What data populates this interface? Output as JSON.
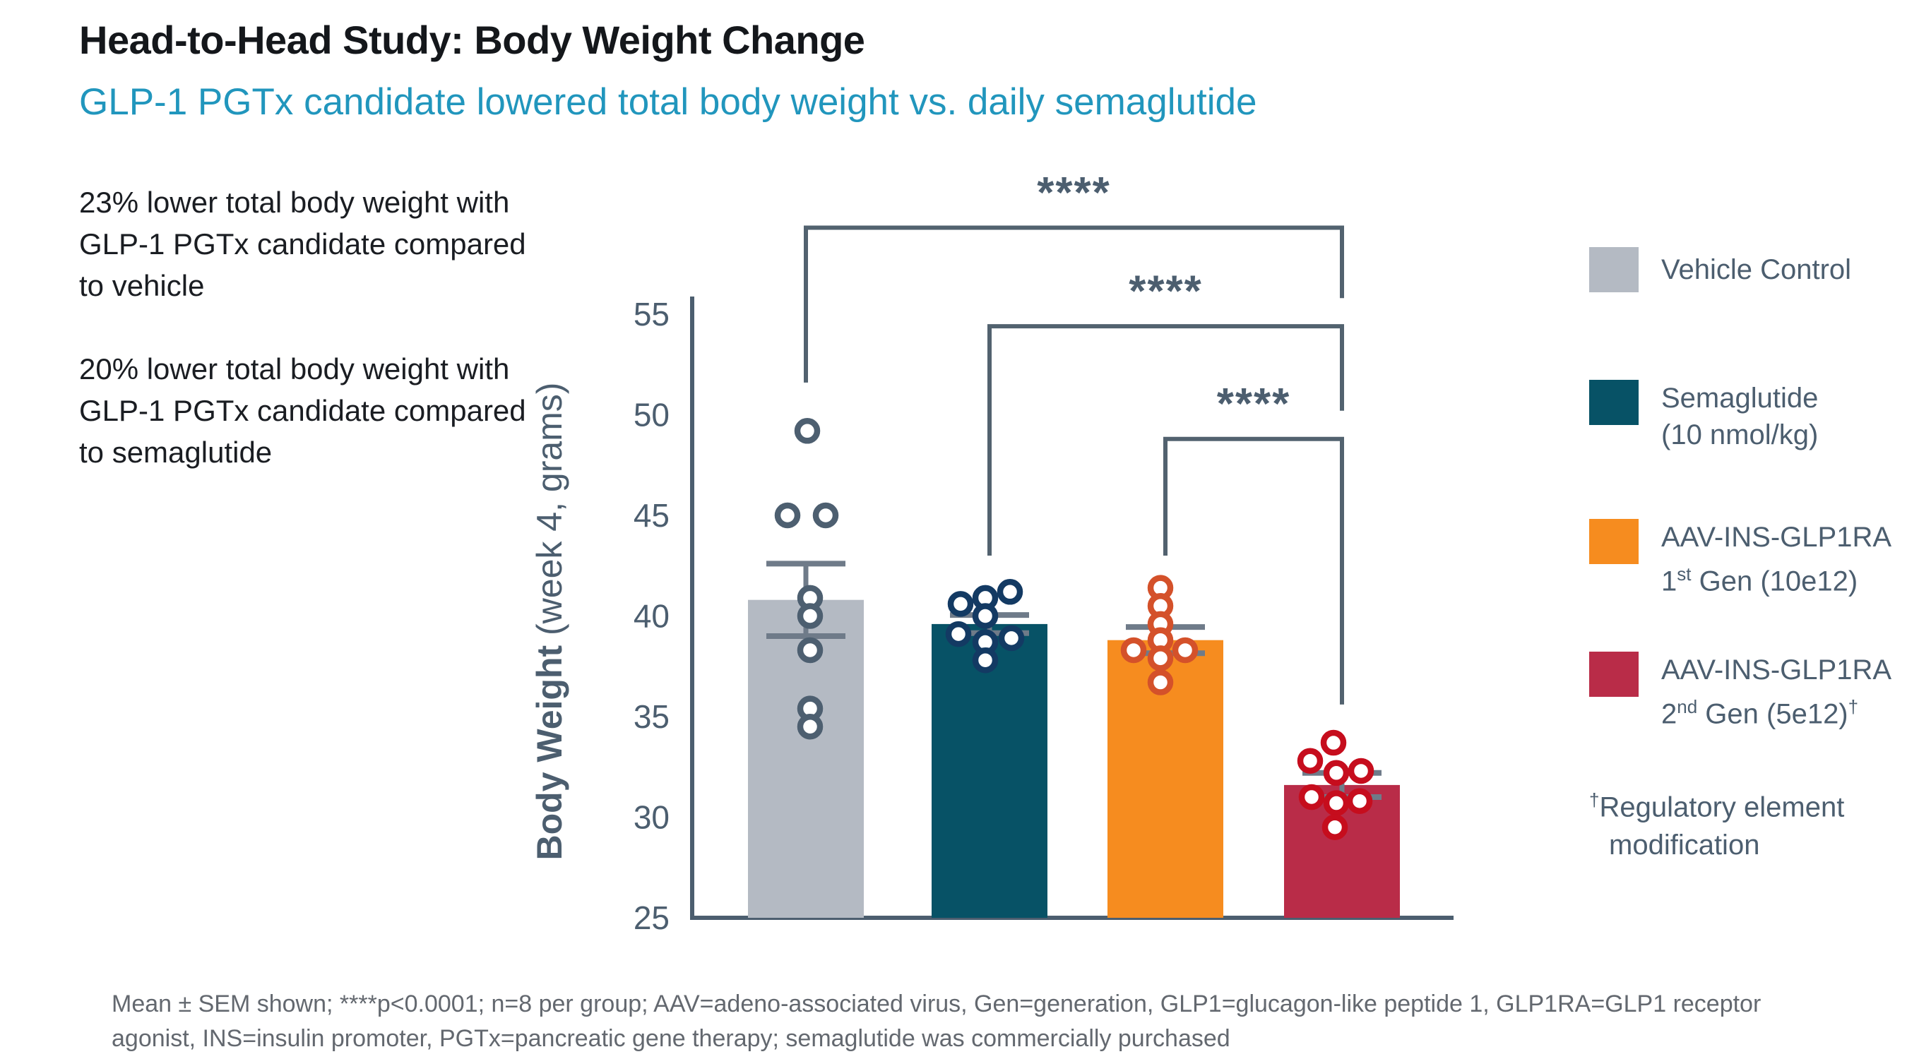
{
  "header": {
    "title": "Head-to-Head Study: Body Weight Change",
    "subtitle": "GLP-1 PGTx candidate lowered total body weight vs. daily semaglutide"
  },
  "highlights": [
    "23% lower total body weight with GLP-1 PGTx candidate compared to vehicle",
    "20% lower total body weight with GLP-1 PGTx candidate compared to semaglutide"
  ],
  "chart_data": {
    "type": "bar",
    "ylabel": "Body Weight (week 4, grams)",
    "ylabel_bold": "Body Weight",
    "ylabel_rest": " (week 4, grams)",
    "ylim": [
      25,
      55
    ],
    "yticks": [
      25,
      30,
      35,
      40,
      45,
      50,
      55
    ],
    "n_per_group": 8,
    "error_type": "SEM",
    "legend_position": "right",
    "categories": [
      "Vehicle Control",
      "Semaglutide (10 nmol/kg)",
      "AAV-INS-GLP1RA 1st Gen (10e12)",
      "AAV-INS-GLP1RA 2nd Gen (5e12)"
    ],
    "series": [
      {
        "name": "Vehicle Control",
        "mean": 40.8,
        "sem": 1.8,
        "bar_color": "#b4bac3",
        "marker_color": "#4d5f70",
        "points": [
          49.2,
          45.0,
          45.0,
          40.9,
          40.0,
          38.3,
          35.4,
          34.5
        ],
        "jitter": [
          2,
          -26,
          28,
          6,
          6,
          6,
          6,
          6
        ]
      },
      {
        "name": "Semaglutide (10 nmol/kg)",
        "mean": 39.6,
        "sem": 0.45,
        "bar_color": "#075266",
        "marker_color": "#133a63",
        "points": [
          41.2,
          40.9,
          40.6,
          40.0,
          39.1,
          38.9,
          38.7,
          37.8
        ],
        "jitter": [
          29,
          -6,
          -41,
          -6,
          -44,
          31,
          -6,
          -6
        ]
      },
      {
        "name": "AAV-INS-GLP1RA 1st Gen (10e12)",
        "mean": 38.8,
        "sem": 0.65,
        "bar_color": "#f68c1f",
        "marker_color": "#d4512a",
        "points": [
          41.4,
          40.5,
          39.6,
          38.8,
          38.3,
          38.3,
          37.9,
          36.7
        ],
        "jitter": [
          -7,
          -7,
          -7,
          -7,
          -45,
          28,
          -7,
          -7
        ]
      },
      {
        "name": "AAV-INS-GLP1RA 2nd Gen (5e12)",
        "mean": 31.6,
        "sem": 0.6,
        "bar_color": "#b92c48",
        "marker_color": "#c60d1d",
        "points": [
          33.7,
          32.8,
          32.3,
          32.2,
          31.0,
          30.8,
          30.7,
          29.5
        ],
        "jitter": [
          -12,
          -45,
          27,
          -8,
          -43,
          25,
          -8,
          -10
        ]
      }
    ],
    "significance": [
      {
        "from": 0,
        "to": 3,
        "label": "****",
        "bar_y": 59.3,
        "left_drop_to": 51.6,
        "right_drop_to": 55.8
      },
      {
        "from": 1,
        "to": 3,
        "label": "****",
        "bar_y": 54.4,
        "left_drop_to": 43.0,
        "right_drop_to": 50.2
      },
      {
        "from": 2,
        "to": 3,
        "label": "****",
        "bar_y": 48.8,
        "left_drop_to": 43.0,
        "right_drop_to": 35.6
      }
    ]
  },
  "legend": {
    "items": [
      {
        "swatch_color": "#b4bac3",
        "line1": "Vehicle Control"
      },
      {
        "swatch_color": "#075266",
        "line1": "Semaglutide",
        "line2": "(10 nmol/kg)"
      },
      {
        "swatch_color": "#f68c1f",
        "line1": "AAV-INS-GLP1RA",
        "line2_num": "1",
        "line2_sup": "st",
        "line2_rest": " Gen (10e12)"
      },
      {
        "swatch_color": "#b92c48",
        "line1": "AAV-INS-GLP1RA",
        "line2_num": "2",
        "line2_sup": "nd",
        "line2_rest": " Gen (5e12)",
        "line2_dagger": "†"
      }
    ],
    "footnote_sup": "†",
    "footnote_line1": "Regulatory element",
    "footnote_line2": "modification"
  },
  "caption": {
    "line1": "Mean ± SEM shown; ****p<0.0001; n=8 per group; AAV=adeno-associated virus, Gen=generation, GLP1=glucagon-like peptide 1, GLP1RA=GLP1 receptor",
    "line2": "agonist, INS=insulin promoter, PGTx=pancreatic gene therapy; semaglutide was commercially purchased"
  },
  "colors": {
    "title": "#14171b",
    "subtitle": "#2196bd",
    "body_text": "#1a1d22",
    "axis": "#4c5e6f",
    "error_bar": "#6f7b89",
    "bracket": "#52626f",
    "legend_text": "#4c5e6f",
    "caption_text": "#63686f"
  }
}
